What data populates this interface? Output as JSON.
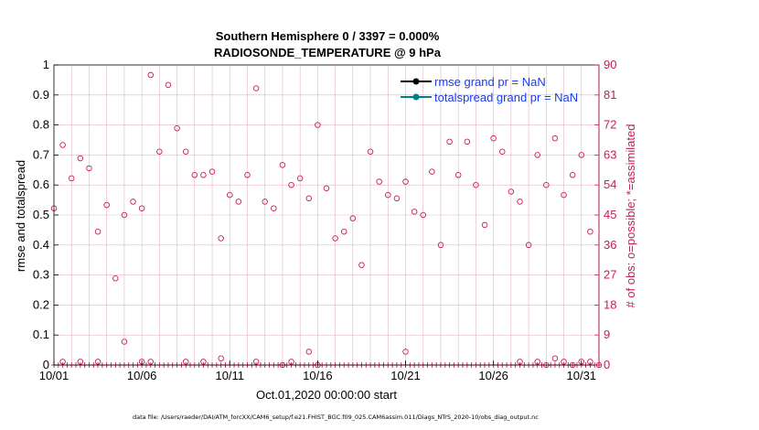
{
  "chart_data": {
    "type": "scatter",
    "title": "Southern Hemisphere 0 / 3397 = 0.000%",
    "subtitle": "RADIOSONDE_TEMPERATURE @ 9 hPa",
    "xlabel": "Oct.01,2020 00:00:00 start",
    "ylabel": "rmse and totalspread",
    "y2label": "# of obs: o=possible; *=assimilated",
    "footnote": "data file: /Users/raeder/DAI/ATM_forcXX/CAM6_setup/f.e21.FHIST_BGC.f09_025.CAM6assim.011/Diags_NTrS_2020-10/obs_diag_output.nc",
    "xlim": [
      1,
      32
    ],
    "ylim": [
      0,
      1
    ],
    "y2lim": [
      0,
      90
    ],
    "x_tick_labels": [
      "10/01",
      "10/06",
      "10/11",
      "10/16",
      "10/21",
      "10/26",
      "10/31"
    ],
    "x_tick_values": [
      1,
      6,
      11,
      16,
      21,
      26,
      31
    ],
    "y_tick_labels": [
      "0",
      "0.1",
      "0.2",
      "0.3",
      "0.4",
      "0.5",
      "0.6",
      "0.7",
      "0.8",
      "0.9",
      "1"
    ],
    "y2_tick_labels": [
      "0",
      "9",
      "18",
      "27",
      "36",
      "45",
      "54",
      "63",
      "72",
      "81",
      "90"
    ],
    "grid": true,
    "legend_position": "top-right",
    "colors": {
      "rmse": "#000000",
      "totalspread": "#008080",
      "obs": "#cc1a55",
      "grid": "#e0b6c6",
      "legend_text": "#1a3cf0",
      "right_axis": "#cc1a55"
    },
    "series": [
      {
        "name": "rmse grand pr = NaN",
        "role": "rmse",
        "values": []
      },
      {
        "name": "totalspread grand pr = NaN",
        "role": "totalspread",
        "values": []
      },
      {
        "role": "obs_possible",
        "marker": "circle",
        "x": [
          1.0,
          1.5,
          2.0,
          2.5,
          3.0,
          3.5,
          4.0,
          4.5,
          5.0,
          5.5,
          6.0,
          6.5,
          7.0,
          7.5,
          8.0,
          8.5,
          9.0,
          9.5,
          10.0,
          10.5,
          11.0,
          11.5,
          12.0,
          12.5,
          13.0,
          13.5,
          14.0,
          14.5,
          15.0,
          15.5,
          16.0,
          16.5,
          17.0,
          17.5,
          18.0,
          18.5,
          19.0,
          19.5,
          20.0,
          20.5,
          21.0,
          21.5,
          22.0,
          22.5,
          23.0,
          23.5,
          24.0,
          24.5,
          25.0,
          25.5,
          26.0,
          26.5,
          27.0,
          27.5,
          28.0,
          28.5,
          29.0,
          29.5,
          30.0,
          30.5,
          31.0,
          31.5,
          32.0
        ],
        "y2": [
          47,
          66,
          56,
          62,
          59,
          40,
          48,
          26,
          45,
          49,
          47,
          87,
          64,
          84,
          71,
          64,
          57,
          57,
          58,
          38,
          51,
          49,
          57,
          83,
          49,
          47,
          60,
          54,
          56,
          50,
          72,
          53,
          38,
          40,
          44,
          30,
          64,
          55,
          51,
          50,
          55,
          46,
          45,
          58,
          36,
          67,
          57,
          67,
          54,
          42,
          68,
          64,
          52,
          49,
          36,
          63,
          54,
          68,
          51,
          57,
          63,
          40,
          0
        ]
      },
      {
        "role": "obs_possible_low",
        "marker": "circle",
        "x": [
          1.5,
          2.5,
          3.5,
          5.0,
          6.0,
          6.5,
          8.5,
          9.5,
          10.5,
          12.5,
          14.0,
          14.5,
          15.5,
          16.0,
          21.0,
          27.5,
          28.5,
          29.0,
          29.5,
          30.0,
          30.5,
          31.0,
          31.5
        ],
        "y2": [
          1,
          1,
          1,
          7,
          1,
          1,
          1,
          1,
          2,
          1,
          0,
          1,
          4,
          0,
          4,
          1,
          1,
          0,
          2,
          1,
          0,
          1,
          1
        ]
      }
    ]
  }
}
